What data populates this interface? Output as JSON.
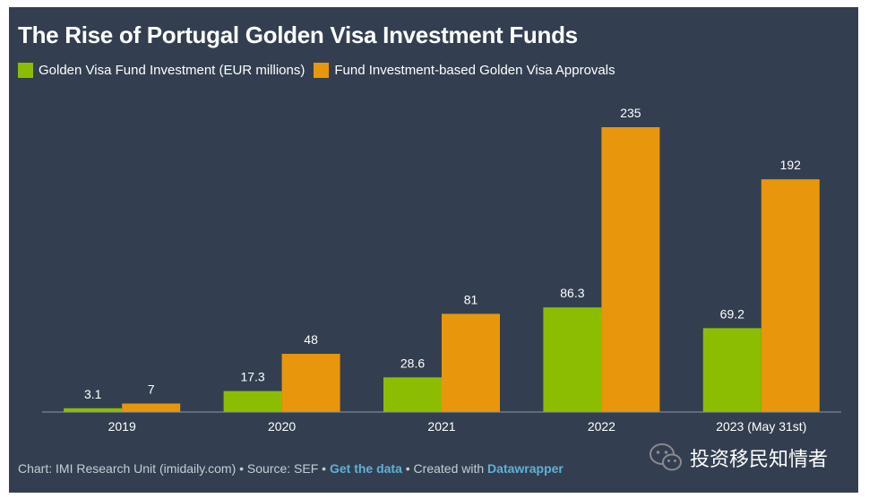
{
  "chart_data": {
    "type": "bar",
    "title": "The Rise of Portugal Golden Visa Investment Funds",
    "categories": [
      "2019",
      "2020",
      "2021",
      "2022",
      "2023 (May 31st)"
    ],
    "series": [
      {
        "name": "Golden Visa Fund Investment (EUR millions)",
        "color": "#8dbd00",
        "values": [
          3.1,
          17.3,
          28.6,
          86.3,
          69.2
        ],
        "labels": [
          "3.1",
          "17.3",
          "28.6",
          "86.3",
          "69.2"
        ]
      },
      {
        "name": "Fund Investment-based Golden Visa Approvals",
        "color": "#e8960c",
        "values": [
          7,
          48,
          81,
          235,
          192
        ],
        "labels": [
          "7",
          "48",
          "81",
          "235",
          "192"
        ]
      }
    ],
    "ylim": [
      0,
      235
    ],
    "grid": false,
    "legend_position": "top-left"
  },
  "footer": {
    "prefix": "Chart: IMI Research Unit (imidaily.com) • Source: SEF • ",
    "get_data": "Get the data",
    "middle": " • Created with ",
    "datawrapper": "Datawrapper"
  },
  "watermark": {
    "text": "投资移民知情者",
    "icon": "wechat-icon"
  }
}
